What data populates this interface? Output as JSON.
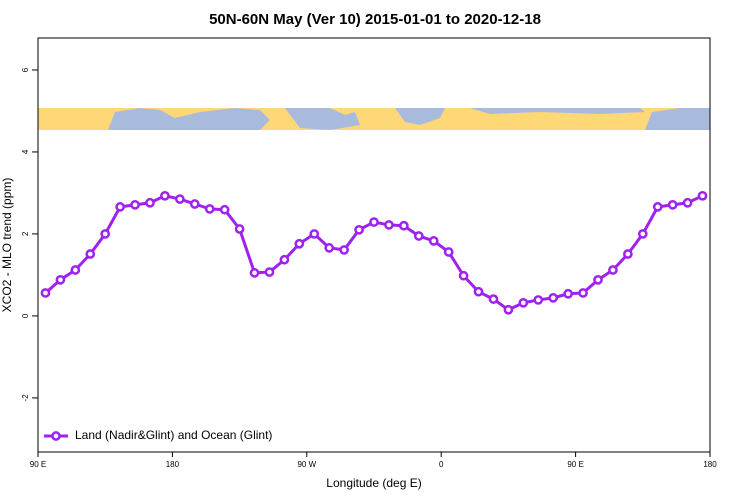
{
  "chart_data": {
    "type": "line",
    "title": "50N-60N May (Ver 10)   2015-01-01 to 2020-12-18",
    "x_label": "Longitude (deg E)",
    "y_label": "XCO2 - MLO trend (ppm)",
    "x": [
      95,
      105,
      115,
      125,
      135,
      145,
      155,
      165,
      175,
      185,
      195,
      205,
      215,
      225,
      235,
      245,
      255,
      265,
      275,
      285,
      295,
      305,
      315,
      325,
      335,
      345,
      355,
      365,
      375,
      385,
      395,
      405,
      415,
      425,
      435,
      445,
      455,
      465,
      475,
      485,
      495,
      505,
      515,
      525,
      535
    ],
    "series": [
      {
        "name": "Land (Nadir&Glint) and Ocean (Glint)",
        "color": "#a020f0",
        "values": [
          0.56,
          0.88,
          1.12,
          1.51,
          2.0,
          2.66,
          2.71,
          2.76,
          2.93,
          2.85,
          2.73,
          2.61,
          2.59,
          2.12,
          1.05,
          1.07,
          1.37,
          1.76,
          2.0,
          1.66,
          1.61,
          2.1,
          2.29,
          2.22,
          2.2,
          1.95,
          1.83,
          1.56,
          0.98,
          0.59,
          0.41,
          0.15,
          0.32,
          0.39,
          0.44,
          0.54,
          0.56,
          0.88,
          1.12,
          1.51,
          2.0,
          2.66,
          2.71,
          2.76,
          2.93
        ]
      }
    ],
    "xlim": [
      90,
      540
    ],
    "ylim": [
      -3.32,
      6.78
    ],
    "xticks": [
      {
        "value": 90,
        "label": "90 E"
      },
      180,
      {
        "value": 270,
        "label": "90 W"
      },
      {
        "value": 360,
        "label": "0"
      },
      {
        "value": 450,
        "label": "90 E"
      },
      {
        "value": 540,
        "label": "180"
      }
    ],
    "yticks": [
      -2,
      0,
      2,
      4,
      6
    ],
    "legend": "bottom-left"
  }
}
